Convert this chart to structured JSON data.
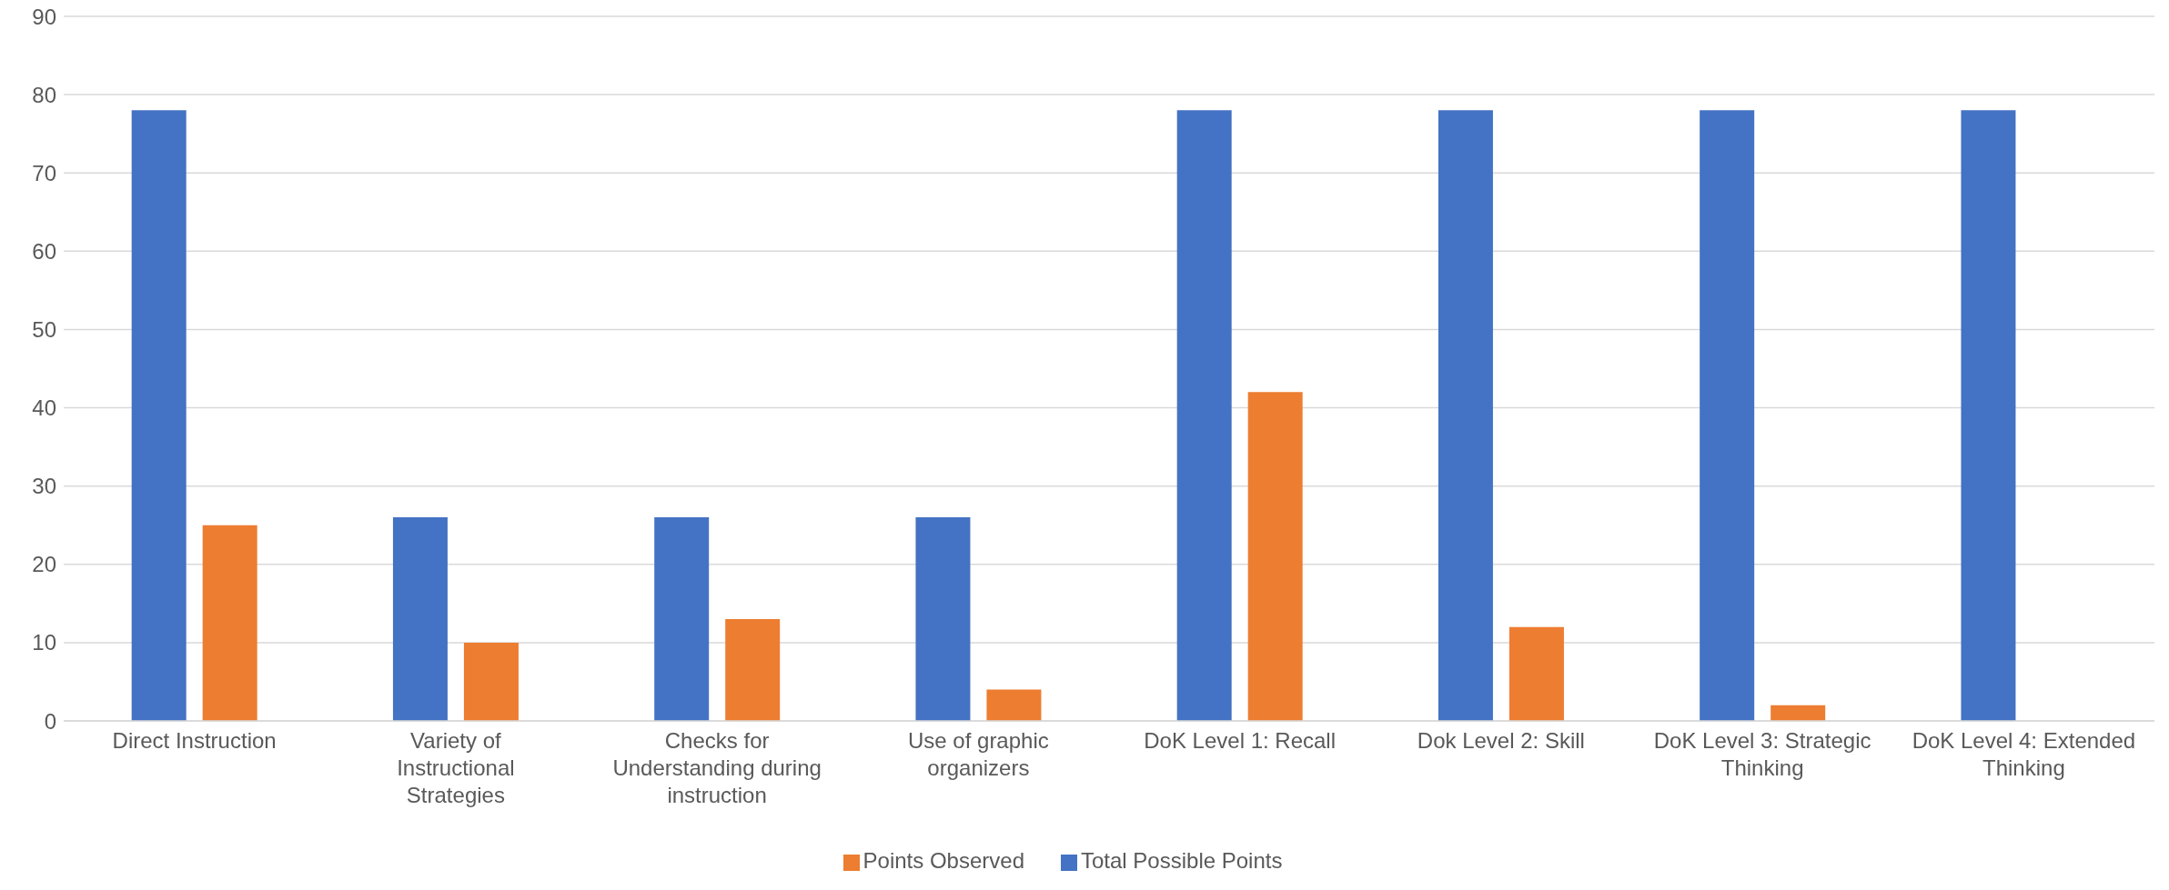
{
  "chart_data": {
    "type": "bar",
    "categories": [
      "Direct Instruction",
      "Variety of Instructional Strategies",
      "Checks for Understanding during instruction",
      "Use of graphic organizers",
      "DoK Level 1: Recall",
      "Dok Level 2: Skill",
      "DoK Level 3: Strategic Thinking",
      "DoK Level 4: Extended Thinking"
    ],
    "series": [
      {
        "name": "Total Possible Points",
        "color": "#4472c4",
        "values": [
          78,
          26,
          26,
          26,
          78,
          78,
          78,
          78
        ]
      },
      {
        "name": "Points Observed",
        "color": "#ed7d31",
        "values": [
          25,
          10,
          13,
          4,
          42,
          12,
          2,
          0
        ]
      }
    ],
    "ylim": [
      0,
      90
    ],
    "yticks": [
      0,
      10,
      20,
      30,
      40,
      50,
      60,
      70,
      80,
      90
    ],
    "grid": "y",
    "legend": "bottom"
  }
}
